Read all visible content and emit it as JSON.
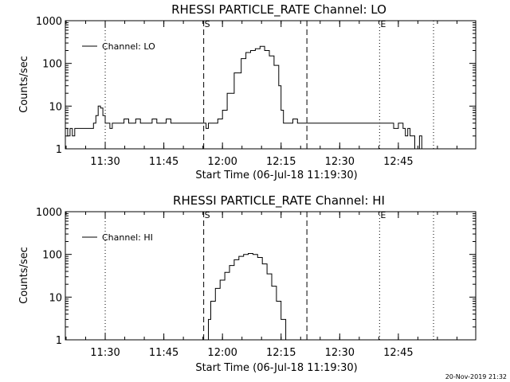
{
  "footer": {
    "timestamp": "20-Nov-2019 21:32"
  },
  "colors": {
    "background": "#ffffff",
    "foreground": "#000000"
  },
  "chart_data": [
    {
      "type": "line",
      "title": "RHESSI PARTICLE_RATE Channel: LO",
      "xlabel": "Start Time (06-Jul-18 11:19:30)",
      "ylabel": "Counts/sec",
      "yscale": "log",
      "xlim": [
        11.33,
        13.08
      ],
      "ylim": [
        1,
        1000
      ],
      "x_ticks": [
        11.5,
        11.75,
        12.0,
        12.25,
        12.5,
        12.75
      ],
      "x_tick_labels": [
        "11:30",
        "11:45",
        "12:00",
        "12:15",
        "12:30",
        "12:45"
      ],
      "y_ticks": [
        1,
        10,
        100,
        1000
      ],
      "y_tick_labels": [
        "1",
        "10",
        "100",
        "1000"
      ],
      "grid": false,
      "legend_position": "top-left",
      "series": [
        {
          "name": "Channel: LO",
          "x": [
            11.33,
            11.34,
            11.35,
            11.36,
            11.37,
            11.38,
            11.39,
            11.4,
            11.41,
            11.42,
            11.43,
            11.44,
            11.45,
            11.46,
            11.47,
            11.48,
            11.49,
            11.5,
            11.51,
            11.52,
            11.53,
            11.55,
            11.57,
            11.58,
            11.6,
            11.61,
            11.63,
            11.65,
            11.67,
            11.68,
            11.7,
            11.72,
            11.74,
            11.76,
            11.78,
            11.8,
            11.82,
            11.84,
            11.86,
            11.88,
            11.9,
            11.92,
            11.93,
            11.94,
            11.95,
            11.96,
            11.98,
            12.0,
            12.02,
            12.05,
            12.08,
            12.1,
            12.12,
            12.14,
            12.16,
            12.18,
            12.2,
            12.22,
            12.24,
            12.25,
            12.26,
            12.28,
            12.3,
            12.32,
            12.34,
            12.36,
            12.38,
            12.4,
            12.42,
            12.44,
            12.46,
            12.48,
            12.5,
            12.52,
            12.54,
            12.56,
            12.58,
            12.6,
            12.62,
            12.64,
            12.66,
            12.68,
            12.7,
            12.72,
            12.73,
            12.75,
            12.77,
            12.78,
            12.79,
            12.8,
            12.81,
            12.82,
            12.83,
            12.84,
            12.85,
            12.86
          ],
          "y": [
            3,
            2,
            3,
            2,
            3,
            3,
            3,
            3,
            3,
            3,
            3,
            3,
            4,
            6,
            10,
            9,
            6,
            4,
            4,
            3,
            4,
            4,
            4,
            5,
            4,
            4,
            5,
            4,
            4,
            4,
            5,
            4,
            4,
            5,
            4,
            4,
            4,
            4,
            4,
            4,
            4,
            4,
            3,
            4,
            4,
            4,
            5,
            8,
            20,
            60,
            130,
            180,
            200,
            220,
            250,
            200,
            150,
            90,
            30,
            8,
            4,
            4,
            5,
            4,
            4,
            4,
            4,
            4,
            4,
            4,
            4,
            4,
            4,
            4,
            4,
            4,
            4,
            4,
            4,
            4,
            4,
            4,
            4,
            4,
            3,
            4,
            3,
            2,
            3,
            2,
            2,
            1,
            1,
            2,
            1,
            1
          ]
        }
      ],
      "markers": [
        {
          "label": "",
          "x": 11.5,
          "style": "dotted"
        },
        {
          "label": "S",
          "x": 11.92,
          "style": "dashed"
        },
        {
          "label": "",
          "x": 12.36,
          "style": "dashed"
        },
        {
          "label": "E",
          "x": 12.67,
          "style": "dotted"
        },
        {
          "label": "",
          "x": 12.9,
          "style": "dotted"
        }
      ]
    },
    {
      "type": "line",
      "title": "RHESSI PARTICLE_RATE Channel: HI",
      "xlabel": "Start Time (06-Jul-18 11:19:30)",
      "ylabel": "Counts/sec",
      "yscale": "log",
      "xlim": [
        11.33,
        13.08
      ],
      "ylim": [
        1,
        1000
      ],
      "x_ticks": [
        11.5,
        11.75,
        12.0,
        12.25,
        12.5,
        12.75
      ],
      "x_tick_labels": [
        "11:30",
        "11:45",
        "12:00",
        "12:15",
        "12:30",
        "12:45"
      ],
      "y_ticks": [
        1,
        10,
        100,
        1000
      ],
      "y_tick_labels": [
        "1",
        "10",
        "100",
        "1000"
      ],
      "grid": false,
      "legend_position": "top-left",
      "series": [
        {
          "name": "Channel: HI",
          "x": [
            11.93,
            11.94,
            11.95,
            11.97,
            11.99,
            12.01,
            12.03,
            12.05,
            12.07,
            12.09,
            12.11,
            12.13,
            12.15,
            12.17,
            12.19,
            12.21,
            12.23,
            12.25,
            12.27
          ],
          "y": [
            1,
            3,
            8,
            16,
            25,
            38,
            55,
            75,
            90,
            100,
            105,
            100,
            85,
            60,
            35,
            18,
            8,
            3,
            1
          ]
        }
      ],
      "markers": [
        {
          "label": "",
          "x": 11.5,
          "style": "dotted"
        },
        {
          "label": "S",
          "x": 11.92,
          "style": "dashed"
        },
        {
          "label": "",
          "x": 12.36,
          "style": "dashed"
        },
        {
          "label": "E",
          "x": 12.67,
          "style": "dotted"
        },
        {
          "label": "",
          "x": 12.9,
          "style": "dotted"
        }
      ]
    }
  ]
}
